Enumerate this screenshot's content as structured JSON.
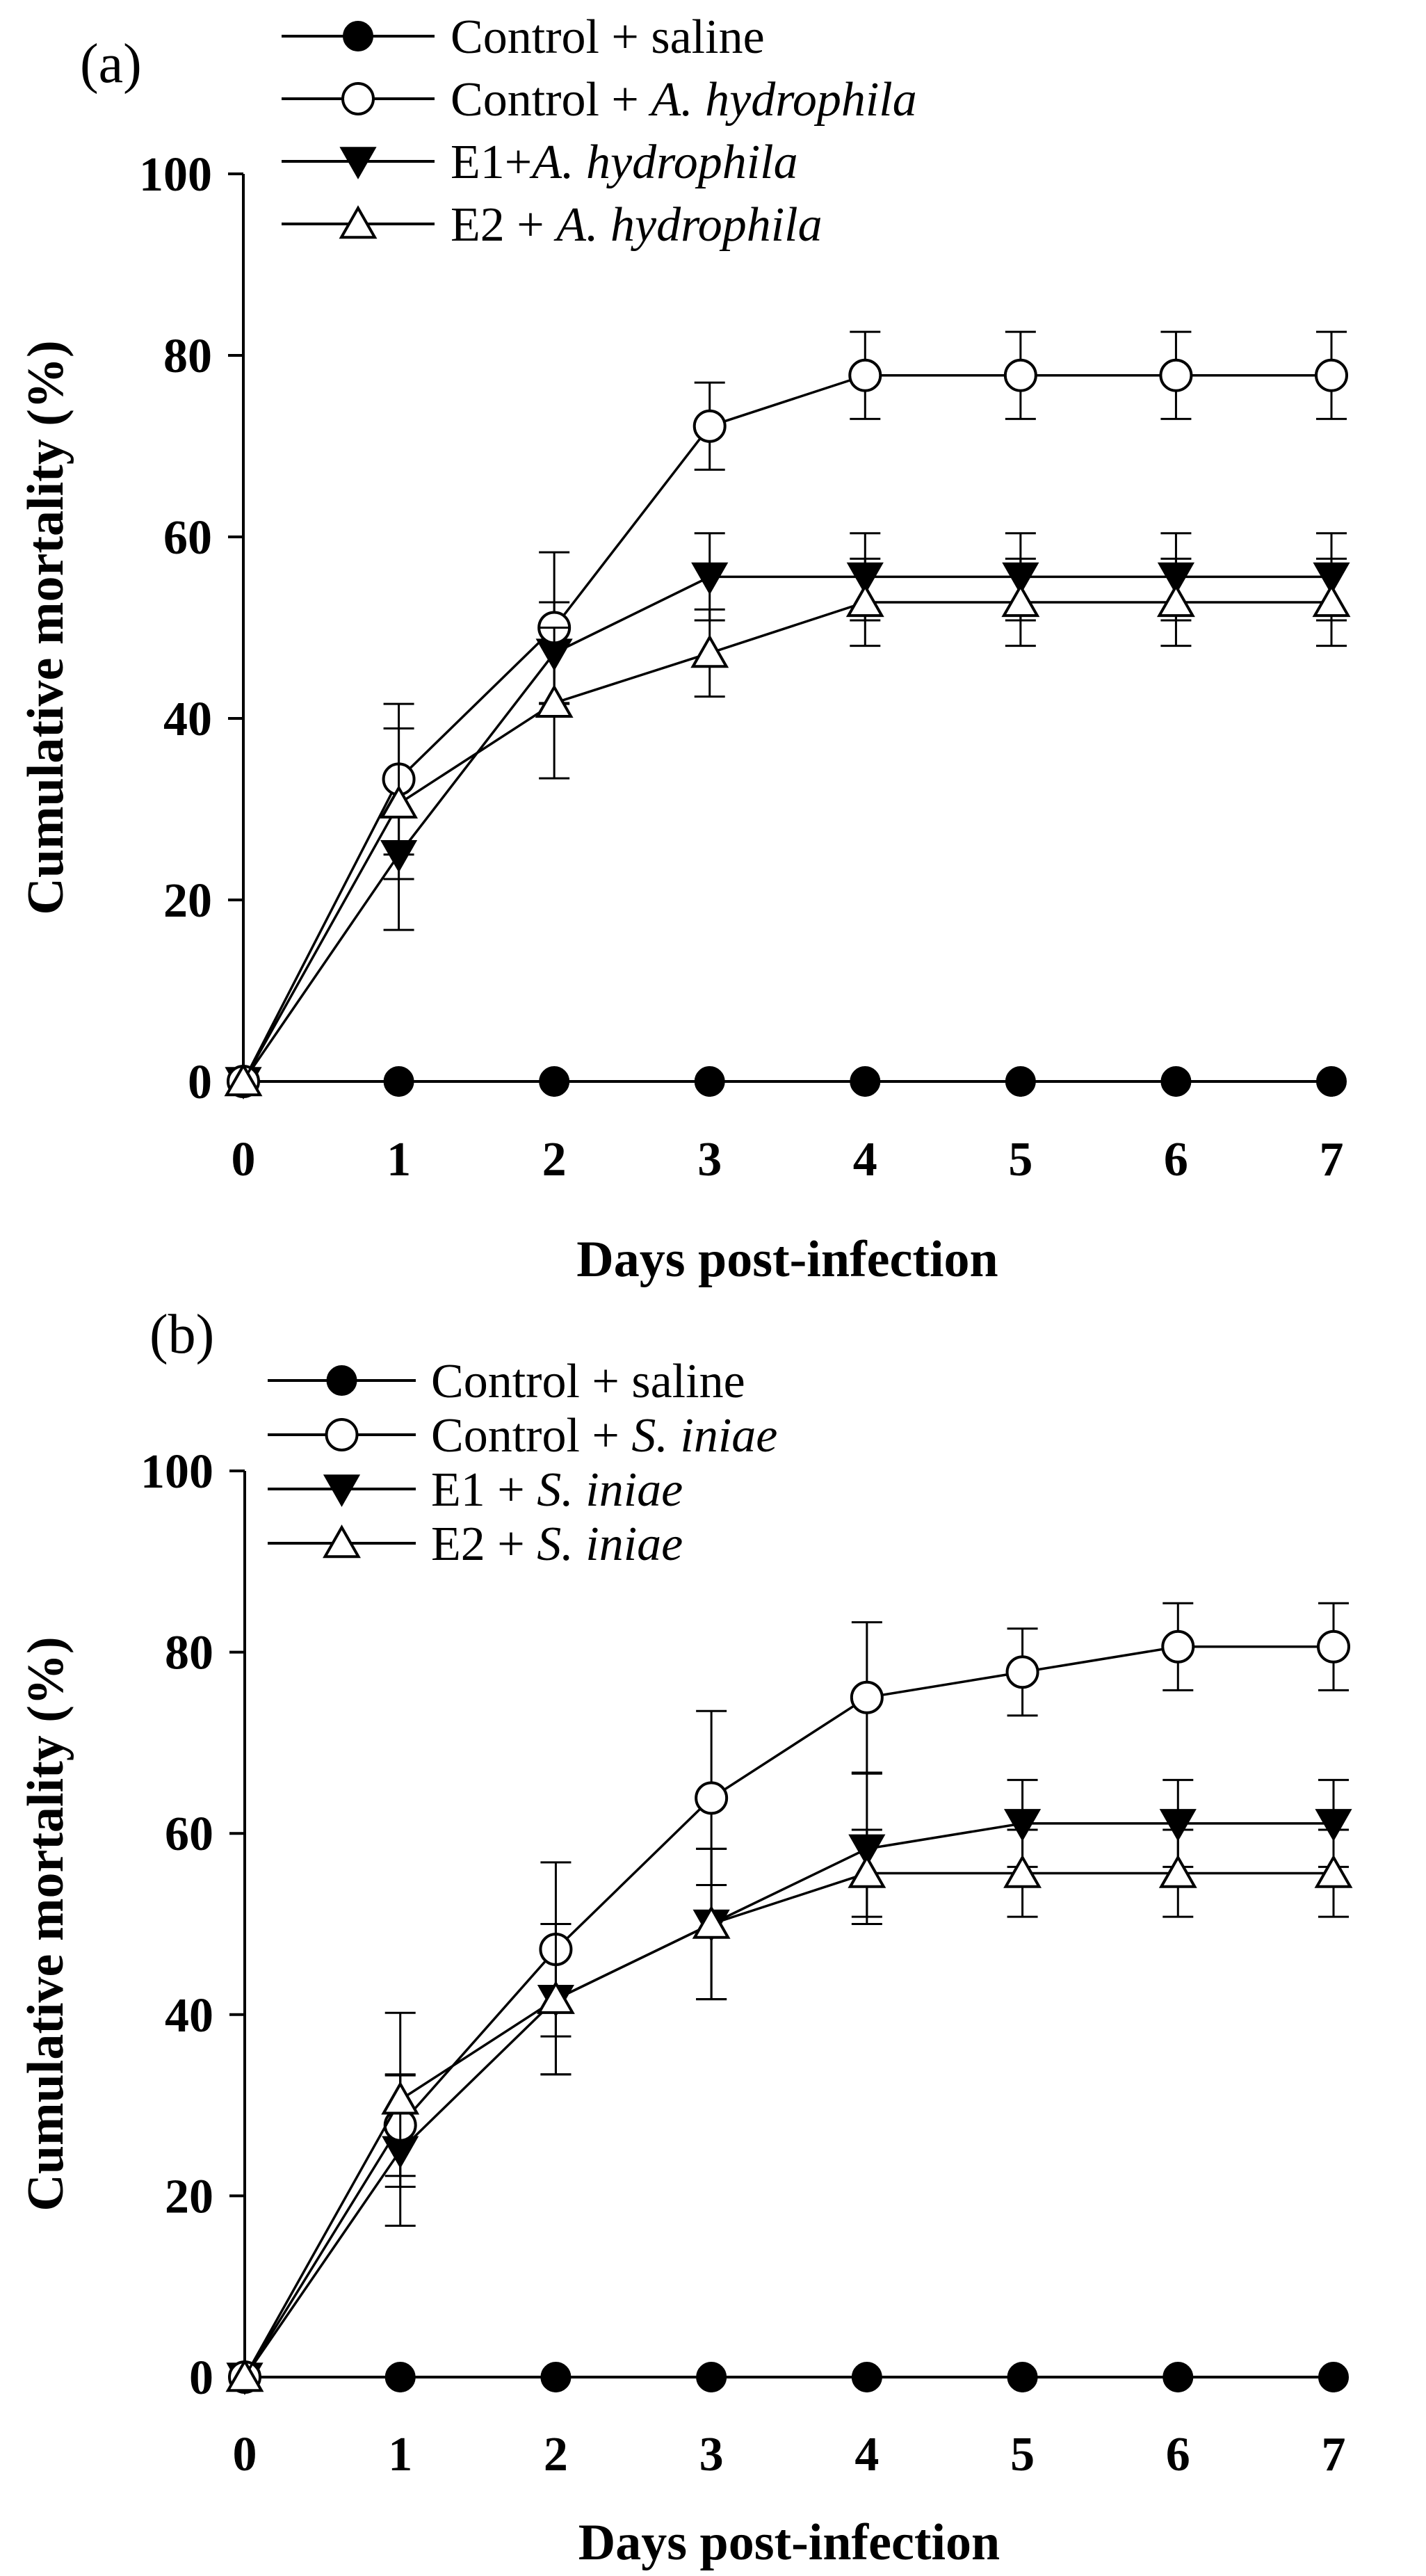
{
  "colors": {
    "ink": "#000000",
    "background": "#ffffff",
    "hollow_fill": "#ffffff"
  },
  "chart_data": [
    {
      "panel_label": "(a)",
      "type": "line",
      "xlabel": "Days post-infection",
      "ylabel": "Cumulative mortality (%)",
      "xlim": [
        0,
        7
      ],
      "ylim": [
        0,
        100
      ],
      "xticks": [
        "0",
        "1",
        "2",
        "3",
        "4",
        "5",
        "6",
        "7"
      ],
      "yticks": [
        "0",
        "20",
        "40",
        "60",
        "80",
        "100"
      ],
      "grid": false,
      "legend_position": "top",
      "x": [
        0,
        1,
        2,
        3,
        4,
        5,
        6,
        7
      ],
      "series": [
        {
          "name": "Control + saline",
          "name_plain": "Control + ",
          "name_italic": "saline",
          "plain_only": true,
          "marker": "filled-circle",
          "values": [
            0,
            0,
            0,
            0,
            0,
            0,
            0,
            0
          ],
          "errors": [
            0,
            0,
            0,
            0,
            0,
            0,
            0,
            0
          ]
        },
        {
          "name": "Control + A. hydrophila",
          "name_plain": "Control + ",
          "name_italic": "A. hydrophila",
          "marker": "open-circle",
          "values": [
            0,
            33.3,
            50,
            72.2,
            77.8,
            77.8,
            77.8,
            77.8
          ],
          "errors": [
            0,
            8.3,
            8.3,
            4.8,
            4.8,
            4.8,
            4.8,
            4.8
          ]
        },
        {
          "name": "E1+A. hydrophila",
          "name_plain": "E1+",
          "name_italic": "A. hydrophila",
          "marker": "filled-triangle-down",
          "values": [
            0,
            25,
            47.2,
            55.6,
            55.6,
            55.6,
            55.6,
            55.6
          ],
          "errors": [
            0,
            8.3,
            5.6,
            4.8,
            4.8,
            4.8,
            4.8,
            4.8
          ]
        },
        {
          "name": "E2 + A. hydrophila",
          "name_plain": "E2 + ",
          "name_italic": "A. hydrophila",
          "marker": "open-triangle-up",
          "values": [
            0,
            30.6,
            41.7,
            47.2,
            52.8,
            52.8,
            52.8,
            52.8
          ],
          "errors": [
            0,
            8.3,
            8.3,
            4.8,
            4.8,
            4.8,
            4.8,
            4.8
          ]
        }
      ]
    },
    {
      "panel_label": "(b)",
      "type": "line",
      "xlabel": "Days post-infection",
      "ylabel": "Cumulative mortality (%)",
      "xlim": [
        0,
        7
      ],
      "ylim": [
        0,
        100
      ],
      "xticks": [
        "0",
        "1",
        "2",
        "3",
        "4",
        "5",
        "6",
        "7"
      ],
      "yticks": [
        "0",
        "20",
        "40",
        "60",
        "80",
        "100"
      ],
      "grid": false,
      "legend_position": "top-left",
      "x": [
        0,
        1,
        2,
        3,
        4,
        5,
        6,
        7
      ],
      "series": [
        {
          "name": "Control + saline",
          "name_plain": "Control + ",
          "name_italic": "saline",
          "plain_only": true,
          "marker": "filled-circle",
          "values": [
            0,
            0,
            0,
            0,
            0,
            0,
            0,
            0
          ],
          "errors": [
            0,
            0,
            0,
            0,
            0,
            0,
            0,
            0
          ]
        },
        {
          "name": "Control + S. iniae",
          "name_plain": "Control + ",
          "name_italic": "S. iniae",
          "marker": "open-circle",
          "values": [
            0,
            27.8,
            47.2,
            63.9,
            75,
            77.8,
            80.6,
            80.6
          ],
          "errors": [
            0,
            5.6,
            9.6,
            9.6,
            8.3,
            4.8,
            4.8,
            4.8
          ]
        },
        {
          "name": "E1 + S. iniae",
          "name_plain": "E1 + ",
          "name_italic": "S. iniae",
          "marker": "filled-triangle-down",
          "values": [
            0,
            25,
            41.7,
            50,
            58.3,
            61.1,
            61.1,
            61.1
          ],
          "errors": [
            0,
            8.3,
            8.3,
            8.3,
            8.3,
            4.8,
            4.8,
            4.8
          ]
        },
        {
          "name": "E2 + S. iniae",
          "name_plain": "E2 + ",
          "name_italic": "S. iniae",
          "marker": "open-triangle-up",
          "values": [
            0,
            30.6,
            41.7,
            50,
            55.6,
            55.6,
            55.6,
            55.6
          ],
          "errors": [
            0,
            9.6,
            8.3,
            8.3,
            4.8,
            4.8,
            4.8,
            4.8
          ]
        }
      ]
    }
  ]
}
